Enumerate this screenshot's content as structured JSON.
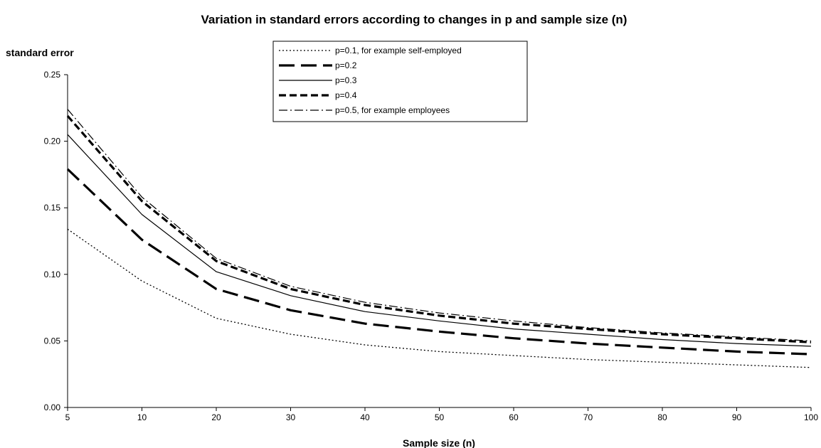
{
  "chart_data": {
    "type": "line",
    "title": "Variation in standard errors according to changes in p and sample size (n)",
    "xlabel": "Sample size (n)",
    "ylabel": "standard error",
    "x": [
      5,
      10,
      20,
      30,
      40,
      50,
      60,
      70,
      80,
      90,
      100
    ],
    "x_tick_labels": [
      "5",
      "10",
      "20",
      "30",
      "40",
      "50",
      "60",
      "70",
      "80",
      "90",
      "100"
    ],
    "y_tick_labels": [
      "0.00",
      "0.05",
      "0.10",
      "0.15",
      "0.20",
      "0.25"
    ],
    "y_ticks": [
      0,
      0.05,
      0.1,
      0.15,
      0.2,
      0.25
    ],
    "ylim": [
      0,
      0.25
    ],
    "x_scale": "categorical-equal-spacing",
    "grid": false,
    "legend_position": "top-center",
    "series": [
      {
        "name": "p=0.1, for example self-employed",
        "style": "dotted-thin",
        "color": "#000000",
        "values": [
          0.134,
          0.095,
          0.067,
          0.055,
          0.047,
          0.042,
          0.039,
          0.036,
          0.034,
          0.032,
          0.03
        ]
      },
      {
        "name": "p=0.2",
        "style": "long-dash-thick",
        "color": "#000000",
        "values": [
          0.179,
          0.126,
          0.089,
          0.073,
          0.063,
          0.057,
          0.052,
          0.048,
          0.045,
          0.042,
          0.04
        ]
      },
      {
        "name": "p=0.3",
        "style": "solid-thin",
        "color": "#000000",
        "values": [
          0.205,
          0.145,
          0.102,
          0.084,
          0.072,
          0.065,
          0.059,
          0.055,
          0.051,
          0.048,
          0.046
        ]
      },
      {
        "name": "p=0.4",
        "style": "short-dash-thick",
        "color": "#000000",
        "values": [
          0.219,
          0.155,
          0.11,
          0.089,
          0.077,
          0.069,
          0.063,
          0.059,
          0.055,
          0.052,
          0.049
        ]
      },
      {
        "name": "p=0.5, for example employees",
        "style": "dash-dot-thin",
        "color": "#000000",
        "values": [
          0.224,
          0.158,
          0.112,
          0.091,
          0.079,
          0.071,
          0.065,
          0.06,
          0.056,
          0.053,
          0.05
        ]
      }
    ]
  }
}
